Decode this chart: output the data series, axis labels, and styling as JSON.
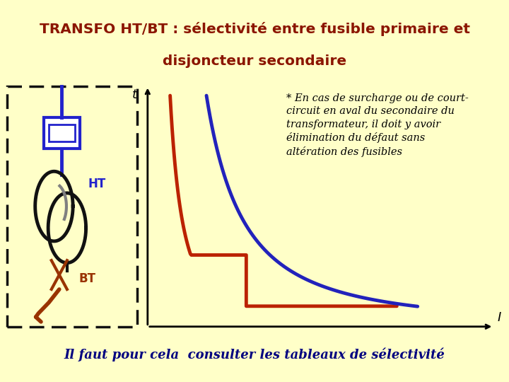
{
  "title_line1": "TRANSFO HT/BT : sélectivité entre fusible primaire et",
  "title_line2": "disjoncteur secondaire",
  "title_color": "#8B1500",
  "title_bg": "#FFFFC8",
  "title_border": "#CC0000",
  "bg_color": "#FFFFC8",
  "annotation_text": "* En cas de surcharge ou de court-\ncircuit en aval du secondaire du\ntransformateur, il doit y avoir\nélimination du défaut sans\naltération des fusibles",
  "footer_text": "Il faut pour cela  consulter les tableaux de sélectivité",
  "curve1_color": "#BB2200",
  "curve2_color": "#2222BB",
  "t_label": "t",
  "I_label": "I",
  "HT_label": "HT",
  "BT_label": "BT",
  "diagram_bg": "#B8F8FF",
  "fusible_color": "#2222CC",
  "transformer_color": "#111111",
  "breaker_color": "#993300"
}
